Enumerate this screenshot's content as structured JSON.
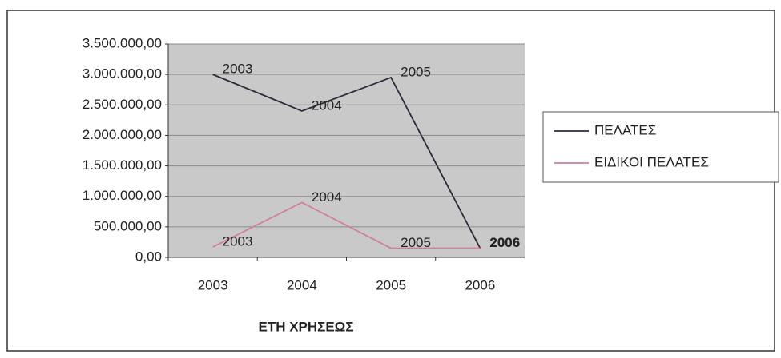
{
  "chart_data": {
    "type": "line",
    "x_label": "ΕΤΗ ΧΡΗΣΕΩΣ",
    "categories": [
      "2003",
      "2004",
      "2005",
      "2006"
    ],
    "series": [
      {
        "name": "ΠΕΛΑΤΕΣ",
        "color": "#2b2b3b",
        "values": [
          3000000,
          2400000,
          2950000,
          150000
        ]
      },
      {
        "name": "ΕΙΔΙΚΟΙ ΠΕΛΑΤΕΣ",
        "color": "#d27f98",
        "values": [
          170000,
          900000,
          150000,
          150000
        ]
      }
    ],
    "ylim": [
      0,
      3500000
    ],
    "yticks": [
      {
        "value": 0,
        "label": "0,00"
      },
      {
        "value": 500000,
        "label": "500.000,00"
      },
      {
        "value": 1000000,
        "label": "1.000.000,00"
      },
      {
        "value": 1500000,
        "label": "1.500.000,00"
      },
      {
        "value": 2000000,
        "label": "2.000.000,00"
      },
      {
        "value": 2500000,
        "label": "2.500.000,00"
      },
      {
        "value": 3000000,
        "label": "3.000.000,00"
      },
      {
        "value": 3500000,
        "label": "3.500.000,00"
      }
    ],
    "grid": true,
    "legend": "right",
    "plot_background": "#c9c9c9"
  }
}
